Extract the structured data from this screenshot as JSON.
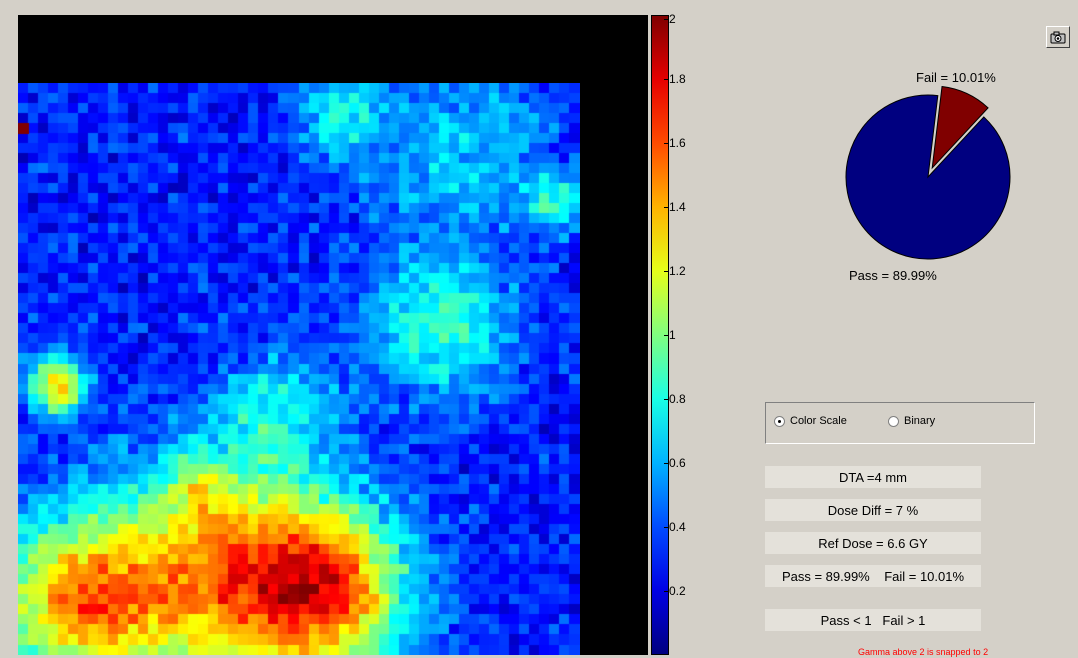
{
  "colorbar": {
    "ticks": [
      {
        "value": 2,
        "label": "2"
      },
      {
        "value": 1.8,
        "label": "1.8"
      },
      {
        "value": 1.6,
        "label": "1.6"
      },
      {
        "value": 1.4,
        "label": "1.4"
      },
      {
        "value": 1.2,
        "label": "1.2"
      },
      {
        "value": 1,
        "label": "1"
      },
      {
        "value": 0.8,
        "label": "0.8"
      },
      {
        "value": 0.6,
        "label": "0.6"
      },
      {
        "value": 0.4,
        "label": "0.4"
      },
      {
        "value": 0.2,
        "label": "0.2"
      }
    ],
    "min": 0,
    "max": 2
  },
  "toolbar": {
    "camera_icon": "camera-icon"
  },
  "pie": {
    "fail_label": "Fail = 10.01%",
    "pass_label": "Pass = 89.99%",
    "fail_fraction": 0.1001,
    "pass_color": "#000080",
    "fail_color": "#800000"
  },
  "display_mode": {
    "options": [
      "Color Scale",
      "Binary"
    ],
    "selected": "Color Scale"
  },
  "info": {
    "dta": "DTA =4 mm",
    "dose_diff": "Dose Diff = 7 %",
    "ref_dose": "Ref Dose = 6.6 GY",
    "pass_fail": "Pass = 89.99%    Fail = 10.01%",
    "criteria": "Pass < 1   Fail > 1"
  },
  "note": "Gamma above 2 is snapped to 2"
}
